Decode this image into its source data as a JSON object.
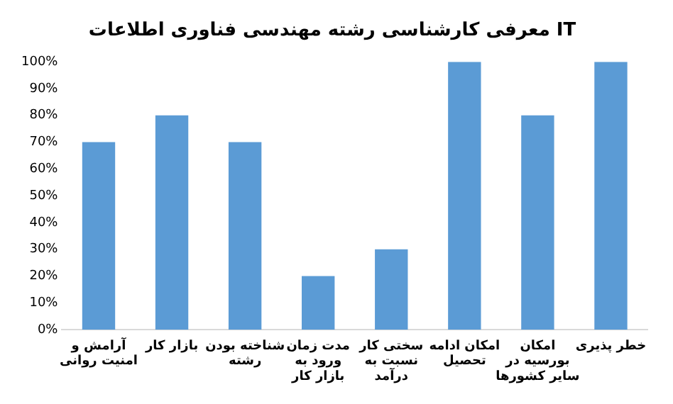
{
  "chart_data": {
    "type": "bar",
    "title": "معرفی کارشناسی رشته مهندسی فناوری اطلاعات IT",
    "categories": [
      "آرامش و امنیت روانی",
      "بازار کار",
      "شناخته بودن رشته",
      "مدت زمان ورود به بازار کار",
      "سختی کار نسبت به درآمد",
      "امکان ادامه تحصیل",
      "امکان بورسیه در سایر کشورها",
      "خطر پذیری"
    ],
    "values": [
      70,
      80,
      70,
      20,
      30,
      100,
      80,
      100
    ],
    "color": "#5b9bd5",
    "ylim": [
      0,
      100
    ],
    "yticks": [
      {
        "value": 0,
        "label": "0%"
      },
      {
        "value": 10,
        "label": "10%"
      },
      {
        "value": 20,
        "label": "20%"
      },
      {
        "value": 30,
        "label": "30%"
      },
      {
        "value": 40,
        "label": "40%"
      },
      {
        "value": 50,
        "label": "50%"
      },
      {
        "value": 60,
        "label": "60%"
      },
      {
        "value": 70,
        "label": "70%"
      },
      {
        "value": 80,
        "label": "80%"
      },
      {
        "value": 90,
        "label": "90%"
      },
      {
        "value": 100,
        "label": "100%"
      }
    ],
    "grid": false
  }
}
